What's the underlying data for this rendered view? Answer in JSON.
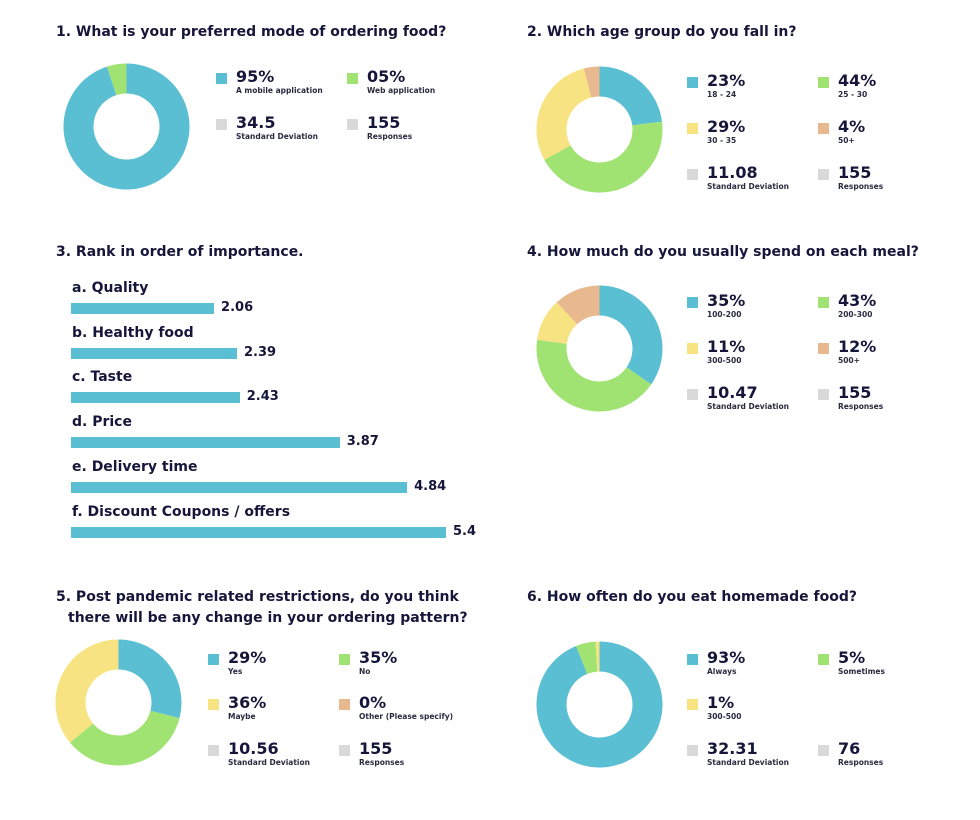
{
  "colors": {
    "blue": "#5bbfd4",
    "green": "#a0e373",
    "yellow": "#f8e382",
    "orange": "#e8b98f",
    "gray": "#d9d9d9"
  },
  "chart_data": [
    {
      "type": "pie",
      "title": "1. What is your preferred mode of ordering food?",
      "slices": [
        {
          "label": "A mobile application",
          "value": 95,
          "display": "95%",
          "color": "#5bbfd4"
        },
        {
          "label": "Web application",
          "value": 5,
          "display": "05%",
          "color": "#a0e373"
        }
      ],
      "stats": [
        {
          "label": "Standard Deviation",
          "display": "34.5"
        },
        {
          "label": "Responses",
          "display": "155"
        }
      ]
    },
    {
      "type": "pie",
      "title": "2. Which age group do you fall in?",
      "slices": [
        {
          "label": "18 - 24",
          "value": 23,
          "display": "23%",
          "color": "#5bbfd4"
        },
        {
          "label": "25 - 30",
          "value": 44,
          "display": "44%",
          "color": "#a0e373"
        },
        {
          "label": "30 - 35",
          "value": 29,
          "display": "29%",
          "color": "#f8e382"
        },
        {
          "label": "50+",
          "value": 4,
          "display": "4%",
          "color": "#e8b98f"
        }
      ],
      "stats": [
        {
          "label": "Standard Deviation",
          "display": "11.08"
        },
        {
          "label": "Responses",
          "display": "155"
        }
      ]
    },
    {
      "type": "bar",
      "title": "3. Rank in order of importance.",
      "categories": [
        "a. Quality",
        "b. Healthy food",
        "c. Taste",
        "d. Price",
        "e. Delivery time",
        "f. Discount Coupons / offers"
      ],
      "values": [
        2.06,
        2.39,
        2.43,
        3.87,
        4.84,
        5.4
      ],
      "value_labels": [
        "2.06",
        "2.39",
        "2.43",
        "3.87",
        "4.84",
        "5.4"
      ],
      "orientation": "horizontal"
    },
    {
      "type": "pie",
      "title": "4. How much do you usually spend on each meal?",
      "slices": [
        {
          "label": "100-200",
          "value": 35,
          "display": "35%",
          "color": "#5bbfd4"
        },
        {
          "label": "200-300",
          "value": 43,
          "display": "43%",
          "color": "#a0e373"
        },
        {
          "label": "300-500",
          "value": 11,
          "display": "11%",
          "color": "#f8e382"
        },
        {
          "label": "500+",
          "value": 12,
          "display": "12%",
          "color": "#e8b98f"
        }
      ],
      "stats": [
        {
          "label": "Standard Deviation",
          "display": "10.47"
        },
        {
          "label": "Responses",
          "display": "155"
        }
      ]
    },
    {
      "type": "pie",
      "title_lines": [
        "5. Post pandemic related restrictions, do you think",
        "there will be any change in your ordering pattern?"
      ],
      "slices": [
        {
          "label": "Yes",
          "value": 29,
          "display": "29%",
          "color": "#5bbfd4"
        },
        {
          "label": "No",
          "value": 35,
          "display": "35%",
          "color": "#a0e373"
        },
        {
          "label": "Maybe",
          "value": 36,
          "display": "36%",
          "color": "#f8e382"
        },
        {
          "label": "Other (Please specify)",
          "value": 0,
          "display": "0%",
          "color": "#e8b98f"
        }
      ],
      "stats": [
        {
          "label": "Standard Deviation",
          "display": "10.56"
        },
        {
          "label": "Responses",
          "display": "155"
        }
      ]
    },
    {
      "type": "pie",
      "title": "6. How often do you eat homemade food?",
      "slices": [
        {
          "label": "Always",
          "value": 93,
          "display": "93%",
          "color": "#5bbfd4"
        },
        {
          "label": "Sometimes",
          "value": 5,
          "display": "5%",
          "color": "#a0e373"
        },
        {
          "label": "300-500",
          "value": 1,
          "display": "1%",
          "color": "#f8e382"
        }
      ],
      "stats": [
        {
          "label": "Standard Deviation",
          "display": "32.31"
        },
        {
          "label": "Responses",
          "display": "76"
        }
      ]
    }
  ]
}
